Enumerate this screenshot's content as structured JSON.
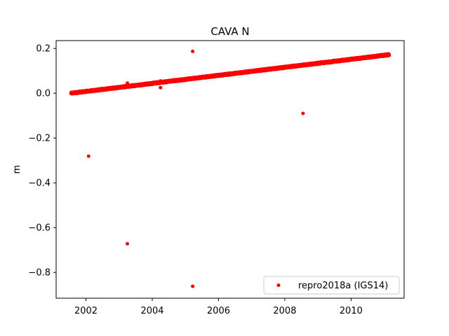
{
  "chart_data": {
    "type": "scatter",
    "title": "CAVA N",
    "xlabel": "",
    "ylabel": "m",
    "xlim": [
      2001.1,
      2011.6
    ],
    "ylim": [
      -0.915,
      0.235
    ],
    "xticks": [
      2002,
      2004,
      2006,
      2008,
      2010
    ],
    "yticks": [
      0.2,
      0.0,
      -0.2,
      -0.4,
      -0.6,
      -0.8
    ],
    "xtick_labels": [
      "2002",
      "2004",
      "2006",
      "2008",
      "2010"
    ],
    "ytick_labels": [
      "0.2",
      "0.0",
      "−0.2",
      "−0.4",
      "−0.6",
      "−0.8"
    ],
    "grid": false,
    "legend_position": "lower-right",
    "series": [
      {
        "name": "repro2018a (IGS14)",
        "color": "#ff0000",
        "marker": "point",
        "trend": {
          "x_start": 2001.55,
          "y_start": 0.0,
          "x_end": 2011.15,
          "y_end": 0.172,
          "approx_daily_points": 3500
        },
        "outliers": [
          {
            "x": 2002.08,
            "y": -0.281
          },
          {
            "x": 2003.25,
            "y": -0.672
          },
          {
            "x": 2005.22,
            "y": 0.187
          },
          {
            "x": 2005.22,
            "y": -0.862
          },
          {
            "x": 2008.55,
            "y": -0.09
          },
          {
            "x": 2003.25,
            "y": 0.045
          },
          {
            "x": 2004.25,
            "y": 0.025
          },
          {
            "x": 2004.25,
            "y": 0.055
          },
          {
            "x": 2007.95,
            "y": 0.115
          }
        ]
      }
    ]
  }
}
